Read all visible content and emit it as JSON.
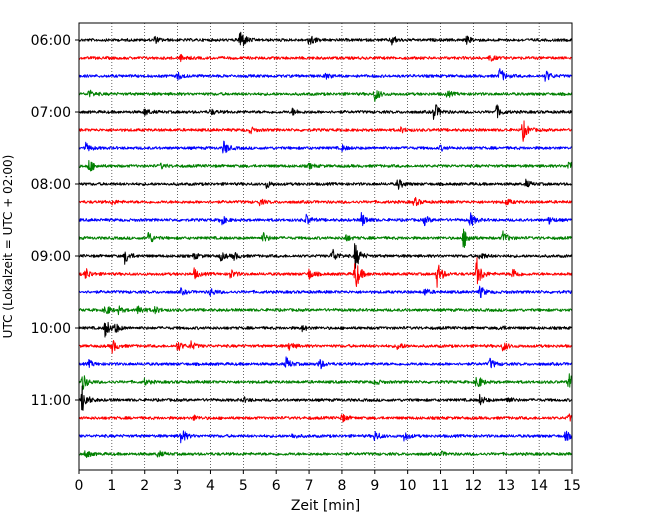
{
  "chart_data": {
    "type": "line",
    "title": "",
    "xlabel": "Zeit  [min]",
    "ylabel": "UTC (Lokalzeit = UTC + 02:00)",
    "xlim": [
      0,
      15
    ],
    "x_ticks": [
      0,
      1,
      2,
      3,
      4,
      5,
      6,
      7,
      8,
      9,
      10,
      11,
      12,
      13,
      14,
      15
    ],
    "x_tick_labels": [
      "0",
      "1",
      "2",
      "3",
      "4",
      "5",
      "6",
      "7",
      "8",
      "9",
      "10",
      "11",
      "12",
      "13",
      "14",
      "15"
    ],
    "y_tick_labels": [
      "06:00",
      "07:00",
      "08:00",
      "09:00",
      "10:00",
      "11:00"
    ],
    "grid": "vertical dotted",
    "trace_interval_min": 15,
    "start_time": "06:00",
    "colors": [
      "#000000",
      "#ff0000",
      "#0000ff",
      "#008000"
    ],
    "series": [
      {
        "values": [
          [
            4.9,
            3.2
          ],
          [
            7.0,
            1.8
          ],
          [
            9.5,
            1.4
          ],
          [
            2.3,
            0.8
          ],
          [
            11.8,
            0.9
          ]
        ]
      },
      {
        "values": [
          [
            3.1,
            0.7
          ],
          [
            12.5,
            0.8
          ]
        ]
      },
      {
        "values": [
          [
            12.8,
            2.0
          ],
          [
            14.2,
            1.5
          ],
          [
            3.0,
            0.9
          ],
          [
            7.5,
            0.7
          ]
        ]
      },
      {
        "values": [
          [
            0.3,
            1.0
          ],
          [
            9.0,
            1.8
          ],
          [
            11.2,
            0.8
          ]
        ]
      },
      {
        "values": [
          [
            10.8,
            2.6
          ],
          [
            12.7,
            1.7
          ],
          [
            2.0,
            0.9
          ],
          [
            6.5,
            0.8
          ],
          [
            4.0,
            0.7
          ]
        ]
      },
      {
        "values": [
          [
            13.5,
            2.8
          ],
          [
            5.2,
            0.8
          ],
          [
            9.8,
            0.6
          ]
        ]
      },
      {
        "values": [
          [
            0.2,
            1.2
          ],
          [
            4.4,
            1.8
          ],
          [
            8.0,
            0.7
          ],
          [
            11.0,
            0.6
          ]
        ]
      },
      {
        "values": [
          [
            0.3,
            1.8
          ],
          [
            14.9,
            1.2
          ],
          [
            2.5,
            0.6
          ],
          [
            7.0,
            0.6
          ]
        ]
      },
      {
        "values": [
          [
            9.7,
            1.4
          ],
          [
            5.7,
            0.9
          ],
          [
            13.6,
            0.9
          ]
        ]
      },
      {
        "values": [
          [
            10.2,
            1.2
          ],
          [
            13.0,
            0.8
          ],
          [
            1.0,
            0.6
          ],
          [
            5.5,
            0.7
          ]
        ]
      },
      {
        "values": [
          [
            4.3,
            1.5
          ],
          [
            6.9,
            1.4
          ],
          [
            8.6,
            1.8
          ],
          [
            11.9,
            1.9
          ],
          [
            10.5,
            1.2
          ],
          [
            14.3,
            0.9
          ]
        ]
      },
      {
        "values": [
          [
            2.1,
            1.9
          ],
          [
            5.6,
            1.3
          ],
          [
            11.7,
            2.6
          ],
          [
            12.9,
            1.6
          ],
          [
            8.1,
            0.9
          ]
        ]
      },
      {
        "values": [
          [
            1.4,
            1.9
          ],
          [
            4.3,
            1.2
          ],
          [
            4.7,
            1.0
          ],
          [
            7.7,
            2.0
          ],
          [
            8.4,
            3.6
          ],
          [
            12.2,
            1.1
          ],
          [
            3.5,
            0.8
          ]
        ]
      },
      {
        "values": [
          [
            0.2,
            1.5
          ],
          [
            3.5,
            1.3
          ],
          [
            4.6,
            1.2
          ],
          [
            7.0,
            1.3
          ],
          [
            8.4,
            4.5
          ],
          [
            10.9,
            3.2
          ],
          [
            12.1,
            4.0
          ],
          [
            13.2,
            1.5
          ]
        ]
      },
      {
        "values": [
          [
            4.0,
            1.0
          ],
          [
            10.5,
            0.9
          ],
          [
            12.2,
            1.5
          ],
          [
            3.1,
            0.7
          ]
        ]
      },
      {
        "values": [
          [
            0.8,
            1.5
          ],
          [
            1.8,
            1.4
          ],
          [
            2.3,
            0.9
          ],
          [
            1.2,
            0.8
          ]
        ]
      },
      {
        "values": [
          [
            0.8,
            2.4
          ],
          [
            1.1,
            1.1
          ],
          [
            6.8,
            0.7
          ],
          [
            12.8,
            0.6
          ]
        ]
      },
      {
        "values": [
          [
            1.0,
            1.8
          ],
          [
            3.0,
            1.3
          ],
          [
            3.4,
            1.1
          ],
          [
            6.4,
            1.1
          ],
          [
            9.7,
            1.0
          ],
          [
            12.9,
            1.3
          ]
        ]
      },
      {
        "values": [
          [
            6.3,
            1.6
          ],
          [
            7.3,
            1.5
          ],
          [
            12.5,
            1.4
          ],
          [
            0.3,
            0.8
          ]
        ]
      },
      {
        "values": [
          [
            0.1,
            2.2
          ],
          [
            12.1,
            2.1
          ],
          [
            14.9,
            2.3
          ],
          [
            2.0,
            0.7
          ],
          [
            9.0,
            0.7
          ]
        ]
      },
      {
        "values": [
          [
            0.1,
            3.4
          ],
          [
            12.2,
            1.3
          ],
          [
            13.0,
            1.0
          ],
          [
            5.0,
            0.6
          ]
        ]
      },
      {
        "values": [
          [
            8.0,
            1.0
          ],
          [
            14.9,
            0.9
          ],
          [
            3.5,
            0.6
          ]
        ]
      },
      {
        "values": [
          [
            3.1,
            2.1
          ],
          [
            9.0,
            1.3
          ],
          [
            9.9,
            1.2
          ],
          [
            14.8,
            1.2
          ],
          [
            6.5,
            0.6
          ]
        ]
      },
      {
        "values": [
          [
            0.2,
            1.0
          ],
          [
            2.4,
            0.8
          ],
          [
            11.0,
            0.6
          ]
        ]
      }
    ]
  }
}
